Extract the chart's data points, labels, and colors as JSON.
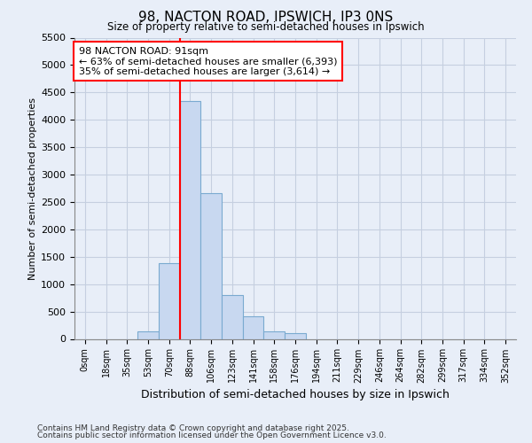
{
  "title": "98, NACTON ROAD, IPSWICH, IP3 0NS",
  "subtitle": "Size of property relative to semi-detached houses in Ipswich",
  "xlabel": "Distribution of semi-detached houses by size in Ipswich",
  "ylabel": "Number of semi-detached properties",
  "categories": [
    "0sqm",
    "18sqm",
    "35sqm",
    "53sqm",
    "70sqm",
    "88sqm",
    "106sqm",
    "123sqm",
    "141sqm",
    "158sqm",
    "176sqm",
    "194sqm",
    "211sqm",
    "229sqm",
    "246sqm",
    "264sqm",
    "282sqm",
    "299sqm",
    "317sqm",
    "334sqm",
    "352sqm"
  ],
  "values": [
    0,
    0,
    0,
    130,
    1390,
    4340,
    2660,
    800,
    420,
    130,
    100,
    0,
    0,
    0,
    0,
    0,
    0,
    0,
    0,
    0,
    0
  ],
  "bar_color": "#c8d8f0",
  "bar_edge_color": "#7aaad0",
  "vline_x": 4.5,
  "vline_color": "red",
  "annotation_text": "98 NACTON ROAD: 91sqm\n← 63% of semi-detached houses are smaller (6,393)\n35% of semi-detached houses are larger (3,614) →",
  "annotation_box_color": "white",
  "annotation_box_edge": "red",
  "ylim": [
    0,
    5500
  ],
  "yticks": [
    0,
    500,
    1000,
    1500,
    2000,
    2500,
    3000,
    3500,
    4000,
    4500,
    5000,
    5500
  ],
  "background_color": "#e8eef8",
  "grid_color": "#c5cfe0",
  "footer_line1": "Contains HM Land Registry data © Crown copyright and database right 2025.",
  "footer_line2": "Contains public sector information licensed under the Open Government Licence v3.0."
}
